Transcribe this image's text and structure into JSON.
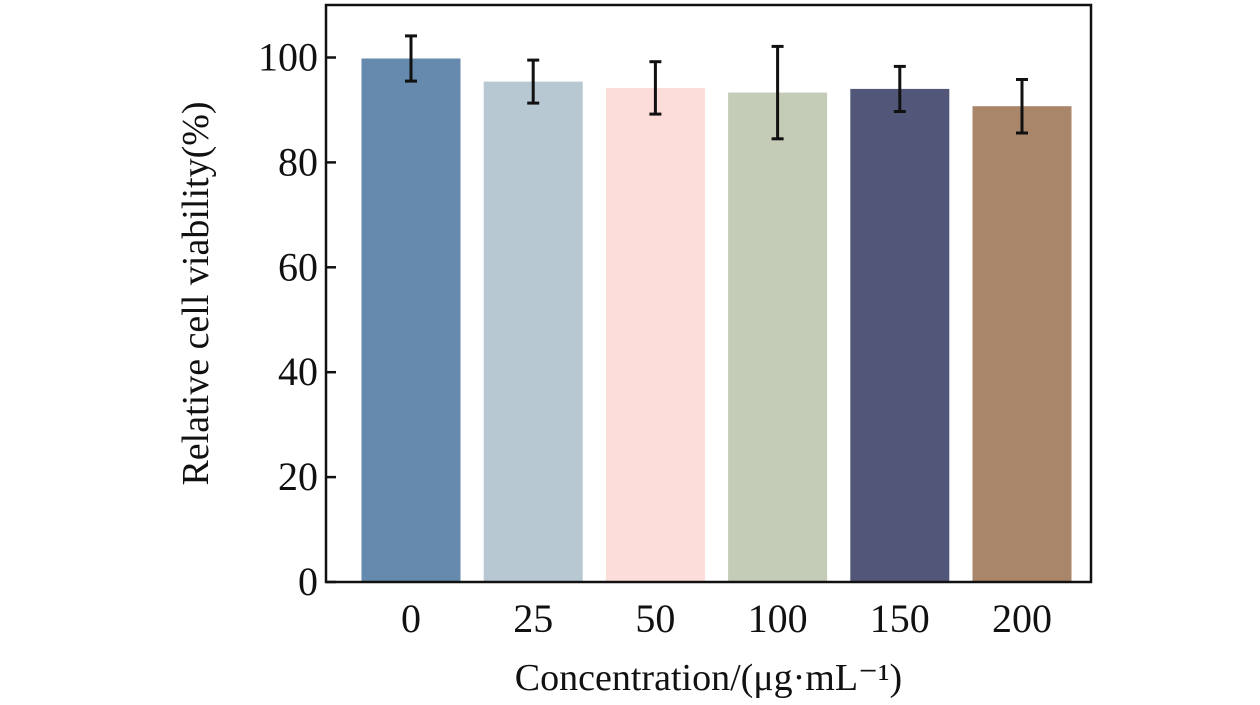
{
  "chart_data": {
    "type": "bar",
    "title": "",
    "xlabel": "Concentration/(μg·mL⁻¹)",
    "ylabel": "Relative cell viability(%)",
    "categories": [
      "0",
      "25",
      "50",
      "100",
      "150",
      "200"
    ],
    "values": [
      99.8,
      95.4,
      94.2,
      93.3,
      94.0,
      90.7
    ],
    "errors": [
      4.3,
      4.1,
      5.0,
      8.8,
      4.3,
      5.1
    ],
    "bar_colors": [
      "#658aad",
      "#b7c8d3",
      "#fdddda",
      "#c4cbb7",
      "#52577a",
      "#a9856a"
    ],
    "ylim": [
      0,
      110
    ],
    "yticks": [
      0,
      20,
      40,
      60,
      80,
      100
    ],
    "grid": false,
    "legend": "none"
  }
}
